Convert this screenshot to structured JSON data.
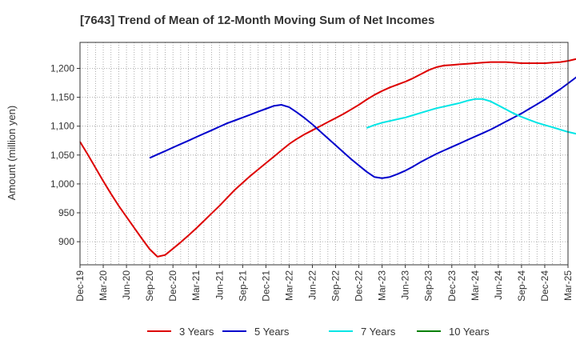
{
  "chart_data": {
    "type": "line",
    "title": "[7643]  Trend of Mean of 12-Month Moving Sum of Net Incomes",
    "ylabel": "Amount (million yen)",
    "xlabel": "",
    "ylim": [
      860,
      1245
    ],
    "yticks": [
      900,
      950,
      1000,
      1050,
      1100,
      1150,
      1200
    ],
    "ytick_labels": [
      "900",
      "950",
      "1,000",
      "1,050",
      "1,100",
      "1,150",
      "1,200"
    ],
    "x_start": "Dec-19",
    "x_end": "Mar-25",
    "xticks": [
      "Dec-19",
      "Mar-20",
      "Jun-20",
      "Sep-20",
      "Dec-20",
      "Mar-21",
      "Jun-21",
      "Sep-21",
      "Dec-21",
      "Mar-22",
      "Jun-22",
      "Sep-22",
      "Dec-22",
      "Mar-23",
      "Jun-23",
      "Sep-23",
      "Dec-23",
      "Mar-24",
      "Jun-24",
      "Sep-24",
      "Dec-24",
      "Mar-25"
    ],
    "grid": true,
    "legend_position": "bottom",
    "series": [
      {
        "name": "3 Years",
        "color": "#dd0000",
        "start_month": 0,
        "values": [
          1073,
          1051,
          1028,
          1005,
          983,
          962,
          943,
          924,
          905,
          887,
          874,
          877,
          888,
          899,
          911,
          923,
          936,
          949,
          962,
          976,
          990,
          1002,
          1014,
          1025,
          1036,
          1047,
          1058,
          1069,
          1078,
          1086,
          1093,
          1100,
          1107,
          1114,
          1121,
          1129,
          1137,
          1146,
          1154,
          1161,
          1167,
          1172,
          1177,
          1183,
          1190,
          1197,
          1202,
          1205,
          1206,
          1207,
          1208,
          1209,
          1210,
          1211,
          1211,
          1211,
          1210,
          1209,
          1209,
          1209,
          1209,
          1210,
          1211,
          1213,
          1216,
          1220,
          1224,
          1228,
          1231,
          1234
        ]
      },
      {
        "name": "5 Years",
        "color": "#0000cc",
        "start_month": 9,
        "values": [
          1045,
          1051,
          1057,
          1063,
          1069,
          1075,
          1081,
          1087,
          1093,
          1099,
          1105,
          1110,
          1115,
          1120,
          1125,
          1130,
          1135,
          1137,
          1133,
          1124,
          1114,
          1103,
          1091,
          1079,
          1067,
          1055,
          1043,
          1032,
          1021,
          1012,
          1010,
          1012,
          1017,
          1023,
          1030,
          1038,
          1045,
          1052,
          1058,
          1064,
          1070,
          1076,
          1082,
          1088,
          1094,
          1101,
          1108,
          1115,
          1122,
          1130,
          1138,
          1146,
          1155,
          1164,
          1174,
          1184,
          1194,
          1203,
          1212,
          1220
        ]
      },
      {
        "name": "7 Years",
        "color": "#00e5e5",
        "start_month": 37,
        "values": [
          1097,
          1102,
          1106,
          1109,
          1112,
          1115,
          1119,
          1123,
          1127,
          1131,
          1134,
          1137,
          1140,
          1144,
          1147,
          1147,
          1143,
          1136,
          1129,
          1122,
          1116,
          1111,
          1106,
          1102,
          1098,
          1094,
          1090,
          1087,
          1086,
          1088,
          1095
        ]
      },
      {
        "name": "10 Years",
        "color": "#008000",
        "start_month": 0,
        "values": []
      }
    ]
  }
}
